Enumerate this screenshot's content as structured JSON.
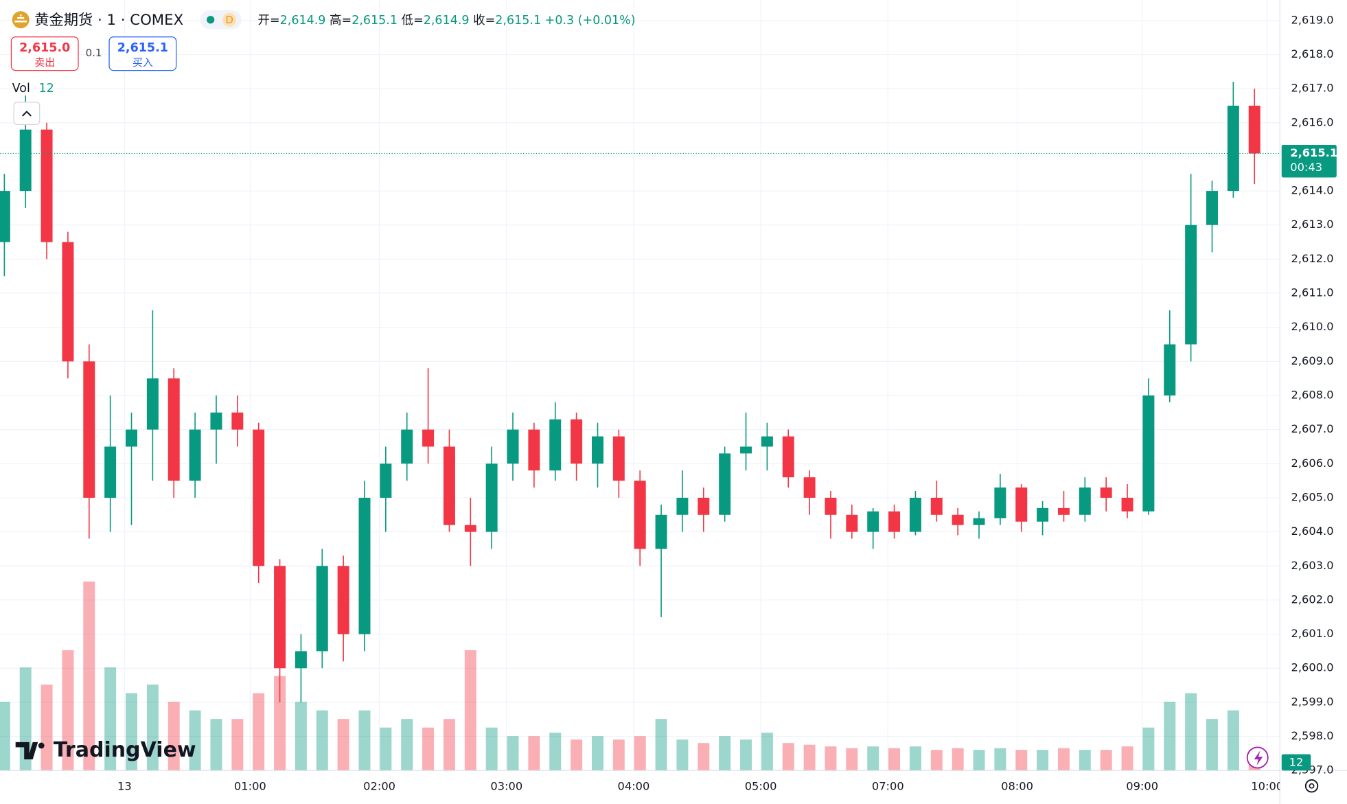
{
  "header": {
    "symbol": "黄金期货 · 1 · COMEX",
    "interval_badge": "D",
    "ohlc": [
      {
        "label": "开=",
        "value": "2,614.9"
      },
      {
        "label": "高=",
        "value": "2,615.1"
      },
      {
        "label": "低=",
        "value": "2,614.9"
      },
      {
        "label": "收=",
        "value": "2,615.1"
      }
    ],
    "change": "+0.3 (+0.01%)",
    "sell": {
      "price": "2,615.0",
      "label": "卖出"
    },
    "spread": "0.1",
    "buy": {
      "price": "2,615.1",
      "label": "买入"
    },
    "volume_label": "Vol",
    "logo": "TradingView"
  },
  "chart_data": {
    "type": "candlestick",
    "up_color": "#089981",
    "down_color": "#f23645",
    "grid": true,
    "open": [
      2612.5,
      2614,
      2615.8,
      2612.5,
      2609,
      2605,
      2606.5,
      2607,
      2608.5,
      2605.5,
      2607,
      2607.5,
      2607,
      2603,
      2600,
      2600.5,
      2603,
      2601,
      2605,
      2606,
      2607,
      2606.5,
      2604.2,
      2604,
      2606,
      2607,
      2605.8,
      2607.3,
      2606,
      2606.8,
      2605.5,
      2603.5,
      2604.5,
      2605,
      2604.5,
      2606.3,
      2606.5,
      2606.8,
      2605.6,
      2605,
      2604.5,
      2604,
      2604.6,
      2604,
      2605,
      2604.5,
      2604.2,
      2604.4,
      2605.3,
      2604.3,
      2604.7,
      2604.5,
      2605.3,
      2605,
      2604.6,
      2608,
      2609.5,
      2613,
      2614,
      2616.5
    ],
    "high": [
      2614.5,
      2616.8,
      2616,
      2612.8,
      2609.5,
      2608,
      2607.5,
      2610.5,
      2608.8,
      2607.5,
      2608,
      2608,
      2607.2,
      2603.2,
      2601,
      2603.5,
      2603.3,
      2605.5,
      2606.5,
      2607.5,
      2608.8,
      2607,
      2605,
      2606.5,
      2607.5,
      2607.2,
      2607.8,
      2607.5,
      2607.2,
      2607,
      2605.8,
      2604.8,
      2605.8,
      2605.3,
      2606.5,
      2607.5,
      2607.2,
      2607,
      2605.8,
      2605.2,
      2604.8,
      2604.7,
      2604.8,
      2605.2,
      2605.5,
      2604.7,
      2604.6,
      2605.7,
      2605.4,
      2604.9,
      2605.2,
      2605.6,
      2605.6,
      2605.4,
      2608.5,
      2610.5,
      2614.5,
      2614.3,
      2617.2,
      2617
    ],
    "low": [
      2611.5,
      2613.5,
      2612,
      2608.5,
      2603.8,
      2604,
      2604.2,
      2605.5,
      2605,
      2605,
      2606,
      2606.5,
      2602.5,
      2599,
      2599,
      2600,
      2600.2,
      2600.5,
      2604,
      2605.5,
      2606,
      2604,
      2603,
      2603.5,
      2605.5,
      2605.3,
      2605.5,
      2605.5,
      2605.3,
      2605,
      2603,
      2601.5,
      2604,
      2604,
      2604.3,
      2605.8,
      2605.8,
      2605.3,
      2604.5,
      2603.8,
      2603.8,
      2603.5,
      2603.8,
      2603.9,
      2604.3,
      2603.9,
      2603.8,
      2604.2,
      2604,
      2603.9,
      2604.3,
      2604.3,
      2604.6,
      2604.4,
      2604.5,
      2607.8,
      2609,
      2612.2,
      2613.8,
      2614.2
    ],
    "close": [
      2614,
      2615.8,
      2612.5,
      2609,
      2605,
      2606.5,
      2607,
      2608.5,
      2605.5,
      2607,
      2607.5,
      2607,
      2603,
      2600,
      2600.5,
      2603,
      2601,
      2605,
      2606,
      2607,
      2606.5,
      2604.2,
      2604,
      2606,
      2607,
      2605.8,
      2607.3,
      2606,
      2606.8,
      2605.5,
      2603.5,
      2604.5,
      2605,
      2604.5,
      2606.3,
      2606.5,
      2606.8,
      2605.6,
      2605,
      2604.5,
      2604,
      2604.6,
      2604,
      2605,
      2604.5,
      2604.2,
      2604.4,
      2605.3,
      2604.3,
      2604.7,
      2604.5,
      2605.3,
      2605,
      2604.6,
      2608,
      2609.5,
      2613,
      2614,
      2616.5,
      2615.1
    ],
    "volume": [
      40,
      60,
      50,
      70,
      110,
      60,
      45,
      50,
      40,
      35,
      30,
      30,
      45,
      55,
      40,
      35,
      30,
      35,
      25,
      30,
      25,
      30,
      70,
      25,
      20,
      20,
      22,
      18,
      20,
      18,
      20,
      30,
      18,
      16,
      20,
      18,
      22,
      16,
      15,
      14,
      13,
      14,
      13,
      14,
      12,
      13,
      12,
      13,
      12,
      12,
      13,
      12,
      12,
      14,
      25,
      40,
      45,
      30,
      35,
      12
    ],
    "current_volume": 12,
    "current_price": {
      "value": 2615.1,
      "label": "2,615.1"
    },
    "countdown": "00:43",
    "xlim": [
      -0.2,
      60.2
    ],
    "xticks": [
      {
        "value": 5.67,
        "label": "13"
      },
      {
        "value": 11.6,
        "label": "01:00"
      },
      {
        "value": 17.7,
        "label": "02:00"
      },
      {
        "value": 23.7,
        "label": "03:00"
      },
      {
        "value": 29.7,
        "label": "04:00"
      },
      {
        "value": 35.7,
        "label": "05:00"
      },
      {
        "value": 41.7,
        "label": "07:00"
      },
      {
        "value": 47.8,
        "label": "08:00"
      },
      {
        "value": 53.7,
        "label": "09:00"
      },
      {
        "value": 59.6,
        "label": "10:00"
      }
    ],
    "ylim": [
      2597,
      2619.6
    ],
    "yticks": [
      {
        "value": 2597,
        "label": "2,597.0"
      },
      {
        "value": 2598,
        "label": "2,598.0"
      },
      {
        "value": 2599,
        "label": "2,599.0"
      },
      {
        "value": 2600,
        "label": "2,600.0"
      },
      {
        "value": 2601,
        "label": "2,601.0"
      },
      {
        "value": 2602,
        "label": "2,602.0"
      },
      {
        "value": 2603,
        "label": "2,603.0"
      },
      {
        "value": 2604,
        "label": "2,604.0"
      },
      {
        "value": 2605,
        "label": "2,605.0"
      },
      {
        "value": 2606,
        "label": "2,606.0"
      },
      {
        "value": 2607,
        "label": "2,607.0"
      },
      {
        "value": 2608,
        "label": "2,608.0"
      },
      {
        "value": 2609,
        "label": "2,609.0"
      },
      {
        "value": 2610,
        "label": "2,610.0"
      },
      {
        "value": 2611,
        "label": "2,611.0"
      },
      {
        "value": 2612,
        "label": "2,612.0"
      },
      {
        "value": 2613,
        "label": "2,613.0"
      },
      {
        "value": 2614,
        "label": "2,614.0"
      },
      {
        "value": 2615,
        "label": "2,615.0"
      },
      {
        "value": 2616,
        "label": "2,616.0"
      },
      {
        "value": 2617,
        "label": "2,617.0"
      },
      {
        "value": 2618,
        "label": "2,618.0"
      },
      {
        "value": 2619,
        "label": "2,619.0"
      }
    ]
  }
}
